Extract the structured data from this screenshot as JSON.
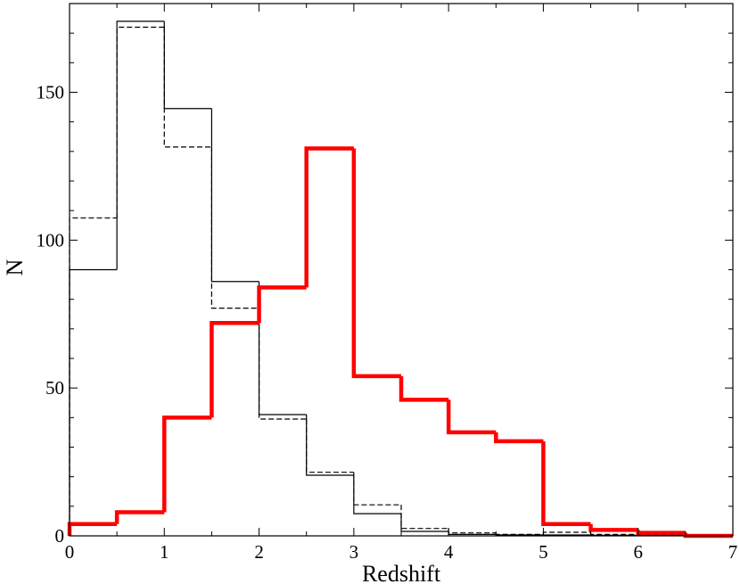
{
  "chart_data": {
    "type": "histogram",
    "title": "",
    "xlabel": "Redshift",
    "ylabel": "N",
    "xlim": [
      0,
      7
    ],
    "ylim": [
      0,
      180
    ],
    "x_major_ticks": [
      0,
      1,
      2,
      3,
      4,
      5,
      6,
      7
    ],
    "x_minor_step": 0.5,
    "y_major_ticks": [
      0,
      50,
      100,
      150
    ],
    "y_minor_step": 10,
    "bin_edges": [
      0,
      0.5,
      1,
      1.5,
      2,
      2.5,
      3,
      3.5,
      4,
      4.5,
      5,
      5.5,
      6,
      6.5,
      7
    ],
    "grid": false,
    "legend": "none",
    "series": [
      {
        "style": "thin-solid",
        "color": "#000000",
        "values": [
          90,
          174,
          144.5,
          86,
          41,
          20.5,
          7.5,
          1.5,
          0.5,
          0.3,
          0.3,
          0.2,
          0.2,
          0.1
        ]
      },
      {
        "style": "thin-dashed",
        "color": "#000000",
        "values": [
          107.5,
          172,
          131.5,
          77,
          39.5,
          21.5,
          10.5,
          2.5,
          1,
          0.5,
          1.2,
          0.5,
          0.3,
          0.2
        ]
      },
      {
        "style": "thick-solid",
        "color": "#ff0000",
        "values": [
          4,
          8,
          40,
          72,
          84,
          131,
          54,
          46,
          35,
          32,
          4,
          2,
          1,
          0
        ]
      }
    ]
  }
}
